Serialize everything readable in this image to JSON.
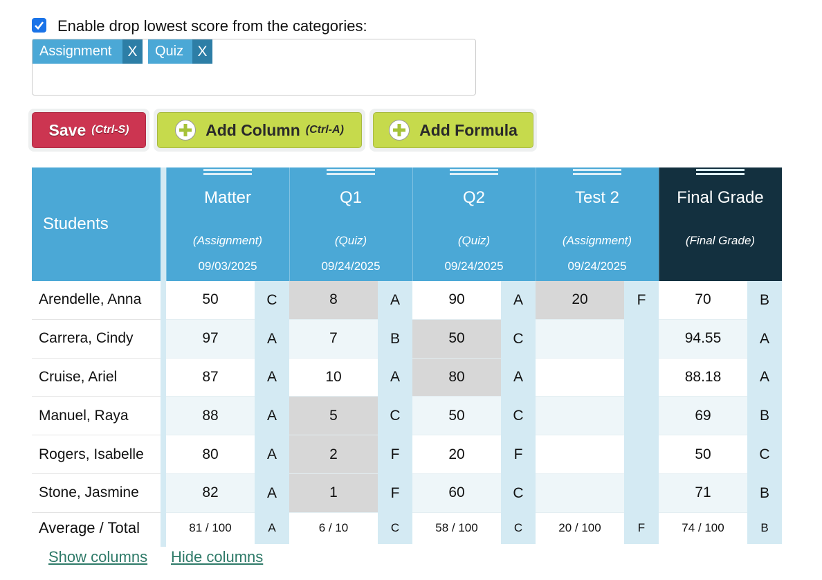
{
  "settings": {
    "drop_lowest_enabled": true,
    "drop_label": "Enable drop lowest score from the categories:"
  },
  "category_tags": [
    {
      "label": "Assignment",
      "remove": "X"
    },
    {
      "label": "Quiz",
      "remove": "X"
    }
  ],
  "buttons": {
    "save": {
      "label": "Save",
      "shortcut": "(Ctrl-S)"
    },
    "add_column": {
      "label": "Add Column",
      "shortcut": "(Ctrl-A)"
    },
    "add_formula": {
      "label": "Add Formula"
    }
  },
  "table": {
    "students_header": "Students",
    "columns": [
      {
        "title": "Matter",
        "category": "(Assignment)",
        "date": "09/03/2025"
      },
      {
        "title": "Q1",
        "category": "(Quiz)",
        "date": "09/24/2025"
      },
      {
        "title": "Q2",
        "category": "(Quiz)",
        "date": "09/24/2025"
      },
      {
        "title": "Test 2",
        "category": "(Assignment)",
        "date": "09/24/2025"
      },
      {
        "title": "Final Grade",
        "category": "(Final Grade)"
      }
    ],
    "rows": [
      {
        "name": "Arendelle, Anna",
        "cells": [
          {
            "score": 50,
            "grade": "C"
          },
          {
            "score": 8,
            "grade": "A",
            "dropped": true
          },
          {
            "score": 90,
            "grade": "A"
          },
          {
            "score": 20,
            "grade": "F",
            "dropped": true
          },
          {
            "score": 70,
            "grade": "B"
          }
        ]
      },
      {
        "name": "Carrera, Cindy",
        "cells": [
          {
            "score": 97,
            "grade": "A"
          },
          {
            "score": 7,
            "grade": "B"
          },
          {
            "score": 50,
            "grade": "C",
            "dropped": true
          },
          {
            "score": null,
            "grade": null
          },
          {
            "score": 94.55,
            "grade": "A"
          }
        ]
      },
      {
        "name": "Cruise, Ariel",
        "cells": [
          {
            "score": 87,
            "grade": "A"
          },
          {
            "score": 10,
            "grade": "A"
          },
          {
            "score": 80,
            "grade": "A",
            "dropped": true
          },
          {
            "score": null,
            "grade": null
          },
          {
            "score": 88.18,
            "grade": "A"
          }
        ]
      },
      {
        "name": "Manuel, Raya",
        "cells": [
          {
            "score": 88,
            "grade": "A"
          },
          {
            "score": 5,
            "grade": "C",
            "dropped": true
          },
          {
            "score": 50,
            "grade": "C"
          },
          {
            "score": null,
            "grade": null
          },
          {
            "score": 69,
            "grade": "B"
          }
        ]
      },
      {
        "name": "Rogers, Isabelle",
        "cells": [
          {
            "score": 80,
            "grade": "A"
          },
          {
            "score": 2,
            "grade": "F",
            "dropped": true
          },
          {
            "score": 20,
            "grade": "F"
          },
          {
            "score": null,
            "grade": null
          },
          {
            "score": 50,
            "grade": "C"
          }
        ]
      },
      {
        "name": "Stone, Jasmine",
        "cells": [
          {
            "score": 82,
            "grade": "A"
          },
          {
            "score": 1,
            "grade": "F",
            "dropped": true
          },
          {
            "score": 60,
            "grade": "C"
          },
          {
            "score": null,
            "grade": null
          },
          {
            "score": 71,
            "grade": "B"
          }
        ]
      }
    ],
    "footer": {
      "label": "Average / Total",
      "cells": [
        {
          "score": "81 / 100",
          "grade": "A"
        },
        {
          "score": "6 / 10",
          "grade": "C"
        },
        {
          "score": "58 / 100",
          "grade": "C"
        },
        {
          "score": "20 / 100",
          "grade": "F"
        },
        {
          "score": "74 / 100",
          "grade": "B"
        }
      ]
    }
  },
  "links": [
    "Show columns",
    "Hide columns"
  ]
}
